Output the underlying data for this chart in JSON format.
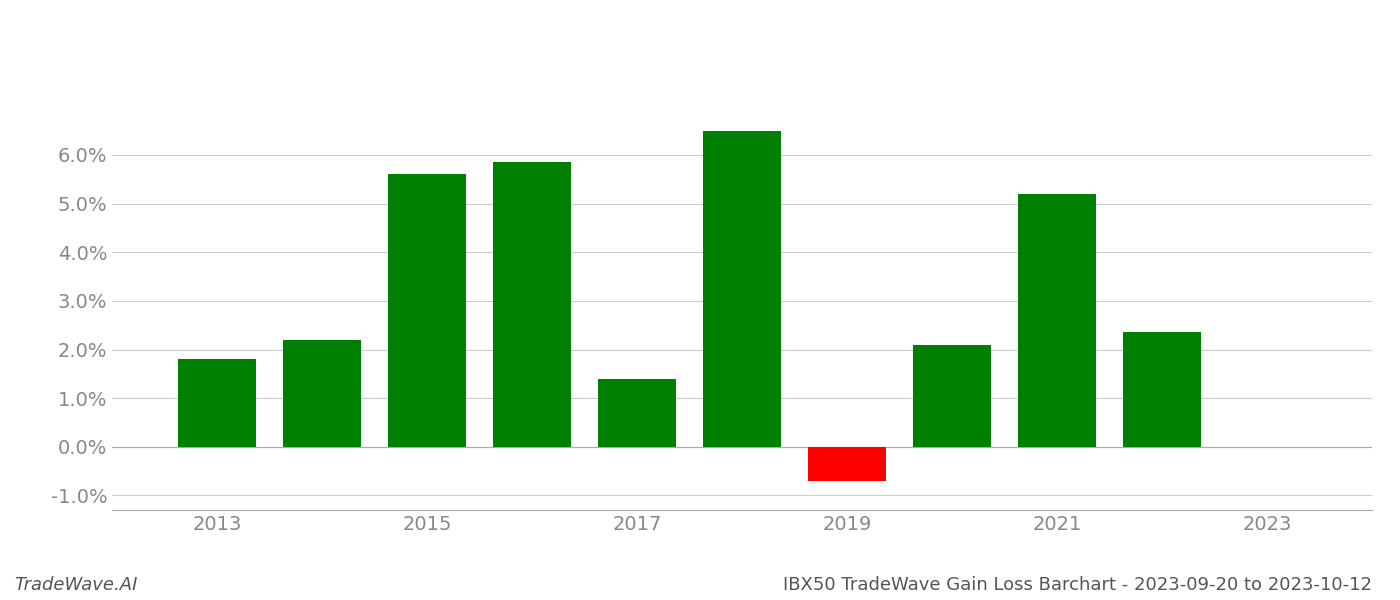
{
  "years": [
    2013,
    2014,
    2015,
    2016,
    2017,
    2018,
    2019,
    2020,
    2021,
    2022
  ],
  "values": [
    0.018,
    0.022,
    0.056,
    0.0585,
    0.014,
    0.065,
    -0.007,
    0.021,
    0.052,
    0.0235
  ],
  "colors": [
    "#008000",
    "#008000",
    "#008000",
    "#008000",
    "#008000",
    "#008000",
    "#ff0000",
    "#008000",
    "#008000",
    "#008000"
  ],
  "ylim": [
    -0.013,
    0.082
  ],
  "yticks": [
    -0.01,
    0.0,
    0.01,
    0.02,
    0.03,
    0.04,
    0.05,
    0.06
  ],
  "xticks": [
    2013,
    2015,
    2017,
    2019,
    2021,
    2023
  ],
  "title": "IBX50 TradeWave Gain Loss Barchart - 2023-09-20 to 2023-10-12",
  "watermark": "TradeWave.AI",
  "bg_color": "#ffffff",
  "grid_color": "#cccccc",
  "bar_width": 0.75,
  "title_fontsize": 13,
  "tick_fontsize": 14,
  "watermark_fontsize": 13
}
